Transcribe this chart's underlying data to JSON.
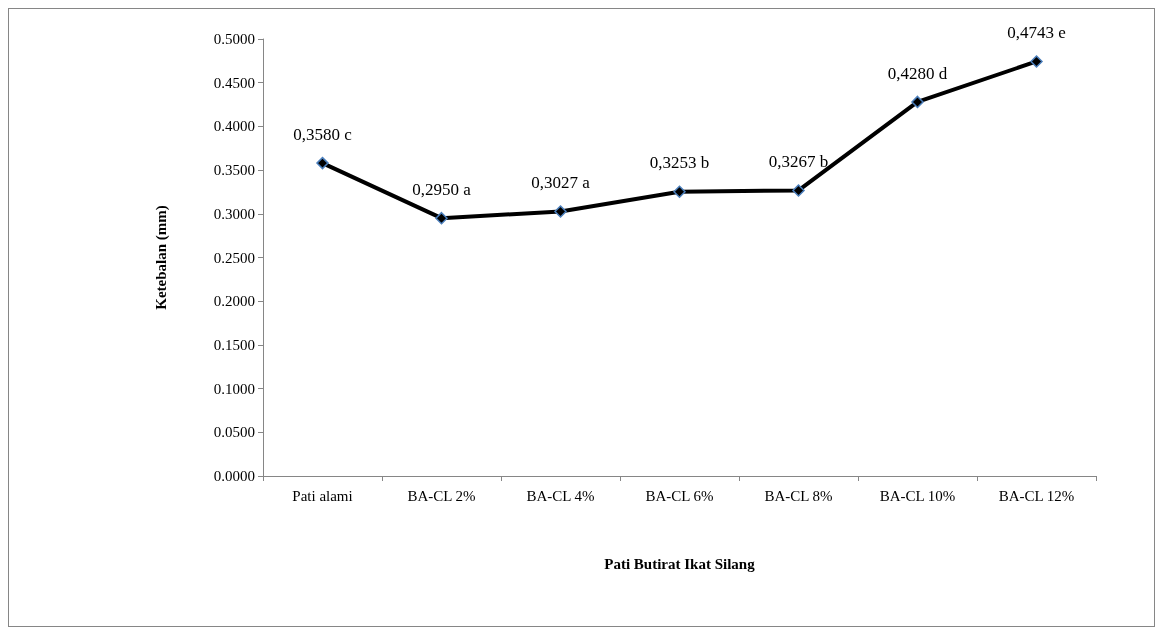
{
  "chart_data": {
    "type": "line",
    "xlabel": "Pati Butirat Ikat Silang",
    "ylabel": "Ketebalan (mm)",
    "categories": [
      "Pati alami",
      "BA-CL 2%",
      "BA-CL 4%",
      "BA-CL 6%",
      "BA-CL 8%",
      "BA-CL 10%",
      "BA-CL 12%"
    ],
    "series": [
      {
        "color": "#000000",
        "values": [
          0.358,
          0.295,
          0.3027,
          0.3253,
          0.3267,
          0.428,
          0.4743
        ],
        "value_labels": [
          "0,3580 c",
          "0,2950 a",
          "0,3027 a",
          "0,3253 b",
          "0,3267 b",
          "0,4280 d",
          "0,4743 e"
        ]
      }
    ],
    "ylim": [
      0,
      0.5
    ],
    "yticks": [
      {
        "value": 0,
        "label": "0.0000"
      },
      {
        "value": 0.05,
        "label": "0.0500"
      },
      {
        "value": 0.1,
        "label": "0.1000"
      },
      {
        "value": 0.15,
        "label": "0.1500"
      },
      {
        "value": 0.2,
        "label": "0.2000"
      },
      {
        "value": 0.25,
        "label": "0.2500"
      },
      {
        "value": 0.3,
        "label": "0.3000"
      },
      {
        "value": 0.35,
        "label": "0.3500"
      },
      {
        "value": 0.4,
        "label": "0.4000"
      },
      {
        "value": 0.45,
        "label": "0.4500"
      },
      {
        "value": 0.5,
        "label": "0.5000"
      }
    ],
    "grid": false,
    "marker": "diamond",
    "line_style": "solid"
  }
}
